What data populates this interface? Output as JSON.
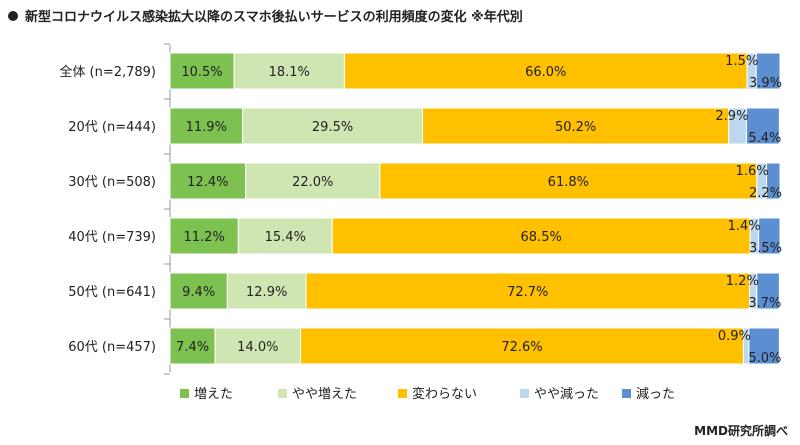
{
  "title": "新型コロナウイルス感染拡大以降のスマホ後払いサービスの利用頻度の変化 ※年代別",
  "source": "MMD研究所調べ",
  "colors": [
    "#7dc150",
    "#cfe6b3",
    "#ffc000",
    "#bdd7ee",
    "#5b8fd2"
  ],
  "chart_data": {
    "type": "bar",
    "orientation": "horizontal",
    "stacked": true,
    "percent": true,
    "title": "新型コロナウイルス感染拡大以降のスマホ後払いサービスの利用頻度の変化 ※年代別",
    "categories": [
      "全体 (n=2,789)",
      "20代 (n=444)",
      "30代 (n=508)",
      "40代 (n=739)",
      "50代 (n=641)",
      "60代 (n=457)"
    ],
    "series": [
      {
        "name": "増えた",
        "values": [
          10.5,
          11.9,
          12.4,
          11.2,
          9.4,
          7.4
        ]
      },
      {
        "name": "やや増えた",
        "values": [
          18.1,
          29.5,
          22.0,
          15.4,
          12.9,
          14.0
        ]
      },
      {
        "name": "変わらない",
        "values": [
          66.0,
          50.2,
          61.8,
          68.5,
          72.7,
          72.6
        ]
      },
      {
        "name": "やや減った",
        "values": [
          1.5,
          2.9,
          1.6,
          1.4,
          1.2,
          0.9
        ]
      },
      {
        "name": "減った",
        "values": [
          3.9,
          5.4,
          2.2,
          3.5,
          3.7,
          5.0
        ]
      }
    ],
    "legend_position": "bottom",
    "xlim": [
      0,
      100
    ]
  }
}
